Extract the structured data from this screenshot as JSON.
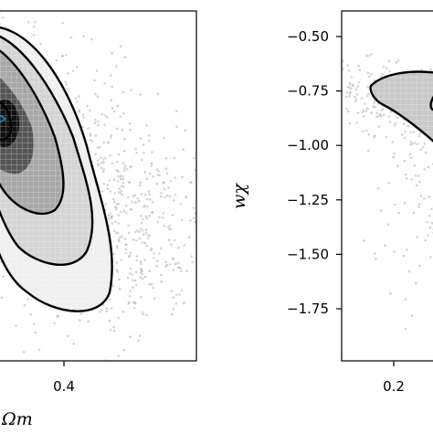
{
  "chart_data": [
    {
      "type": "scatter",
      "title": "",
      "xlabel": "Ωm",
      "ylabel": "",
      "x_ticks": [
        0.4
      ],
      "x_tick_labels": [
        "0.4"
      ],
      "xlim": [
        0.2,
        0.5
      ],
      "ylim": [
        -2.0,
        -0.35
      ],
      "grid": false,
      "legend": "none",
      "contour_levels": 3,
      "peak": [
        0.2,
        -0.8
      ],
      "peak_color": "#1f77b4"
    },
    {
      "type": "scatter",
      "title": "",
      "xlabel": "",
      "ylabel": "wχ",
      "y_ticks": [
        -0.5,
        -0.75,
        -1.0,
        -1.25,
        -1.5,
        -1.75
      ],
      "y_tick_labels": [
        "−0.50",
        "−0.75",
        "−1.00",
        "−1.25",
        "−1.50",
        "−1.75"
      ],
      "x_ticks": [
        0.2
      ],
      "x_tick_labels": [
        "0.2"
      ],
      "xlim": [
        0.15,
        0.35
      ],
      "ylim": [
        -2.0,
        -0.35
      ],
      "grid": false,
      "legend": "none",
      "contour_levels": 2,
      "peak": [
        0.25,
        -0.8
      ]
    }
  ],
  "colors": {
    "points": "#9a9a9a",
    "contour": "#000000",
    "peak": "#1f77b4",
    "axes": "#000000"
  }
}
